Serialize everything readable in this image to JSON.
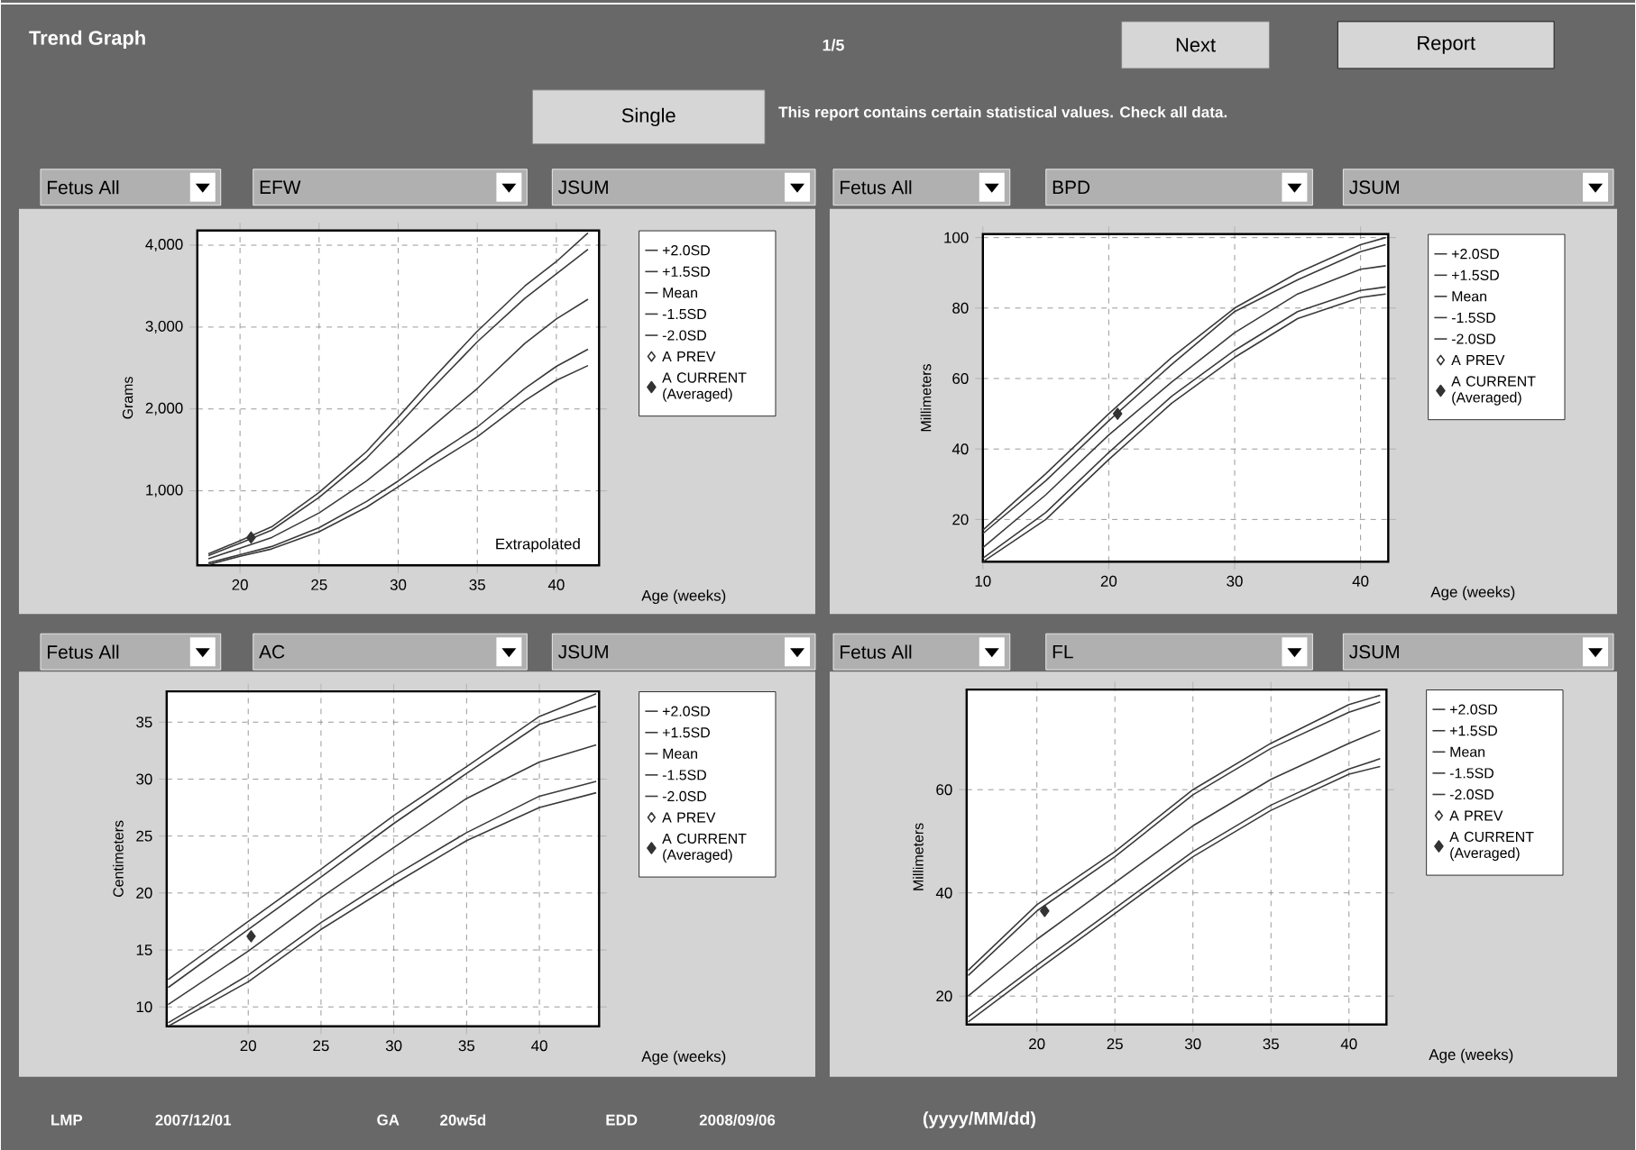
{
  "chart_data": [
    {
      "type": "other",
      "title": "Trend Graph",
      "annotations": [
        "1/5",
        "Next",
        "Report",
        "Single",
        "This report contains certain statistical values. Check all data.",
        "LMP",
        "2007/12/01",
        "GA",
        "20w5d",
        "EDD",
        "2008/09/06",
        "(yyyy/MM/dd)"
      ]
    },
    {
      "type": "line",
      "title": "EFW",
      "annotations": [
        "Fetus All",
        "JSUM",
        "Extrapolated"
      ],
      "xlabel": "Age (weeks)",
      "ylabel": "Grams",
      "x": [
        18,
        20,
        22,
        25,
        28,
        30,
        32,
        35,
        38,
        40,
        42
      ],
      "xlim": [
        17.3,
        42.7
      ],
      "ylim": [
        90,
        4180
      ],
      "xticks": [
        20,
        25,
        30,
        35,
        40
      ],
      "yticks": [
        {
          "value": 1000,
          "label": "1,000"
        },
        {
          "value": 2000,
          "label": "2,000"
        },
        {
          "value": 3000,
          "label": "3,000"
        },
        {
          "value": 4000,
          "label": "4,000"
        }
      ],
      "grid": true,
      "legend": "right",
      "marker": "none",
      "series": [
        {
          "name": "+2.0SD",
          "color": "#3a3a3a",
          "values": [
            230,
            390,
            560,
            980,
            1480,
            1900,
            2330,
            2950,
            3500,
            3800,
            4150
          ]
        },
        {
          "name": "+1.5SD",
          "color": "#3a3a3a",
          "values": [
            210,
            360,
            520,
            920,
            1400,
            1800,
            2220,
            2820,
            3350,
            3650,
            3950
          ]
        },
        {
          "name": "Mean",
          "color": "#3a3a3a",
          "values": [
            170,
            300,
            430,
            730,
            1120,
            1430,
            1760,
            2250,
            2800,
            3100,
            3340
          ]
        },
        {
          "name": "-1.5SD",
          "color": "#3a3a3a",
          "values": [
            120,
            220,
            320,
            550,
            870,
            1120,
            1400,
            1780,
            2250,
            2520,
            2730
          ]
        },
        {
          "name": "-2.0SD",
          "color": "#3a3a3a",
          "values": [
            100,
            200,
            290,
            500,
            800,
            1050,
            1300,
            1660,
            2100,
            2350,
            2530
          ]
        },
        {
          "name": "A PREV",
          "type": "scatter",
          "marker": "diamond",
          "color": "#333333",
          "values": [
            null,
            null,
            null,
            null,
            null,
            null,
            null,
            null,
            null,
            null,
            null
          ]
        },
        {
          "name": "A CURRENT (Averaged)",
          "type": "scatter",
          "marker": "diamond",
          "color": "#333333",
          "x": [
            20.7
          ],
          "values": [
            430
          ]
        }
      ]
    },
    {
      "type": "line",
      "title": "BPD",
      "annotations": [
        "Fetus All",
        "JSUM"
      ],
      "xlabel": "Age (weeks)",
      "ylabel": "Millimeters",
      "x": [
        10,
        15,
        20,
        25,
        30,
        35,
        40,
        42
      ],
      "xlim": [
        10,
        42.2
      ],
      "ylim": [
        8,
        101
      ],
      "xticks": [
        10,
        20,
        30,
        40
      ],
      "yticks": [
        20,
        40,
        60,
        80,
        100
      ],
      "grid": true,
      "legend": "right",
      "marker": "none",
      "series": [
        {
          "name": "+2.0SD",
          "color": "#3a3a3a",
          "values": [
            17,
            33,
            50,
            66,
            80,
            90,
            98,
            100
          ]
        },
        {
          "name": "+1.5SD",
          "color": "#3a3a3a",
          "values": [
            16,
            31,
            48,
            64,
            79,
            88,
            96,
            98
          ]
        },
        {
          "name": "Mean",
          "color": "#3a3a3a",
          "values": [
            12,
            27,
            44,
            59,
            73,
            84,
            91,
            92
          ]
        },
        {
          "name": "-1.5SD",
          "color": "#3a3a3a",
          "values": [
            9,
            22,
            39,
            55,
            68,
            79,
            85,
            86
          ]
        },
        {
          "name": "-2.0SD",
          "color": "#3a3a3a",
          "values": [
            8,
            20,
            37,
            53,
            66,
            77,
            83,
            84
          ]
        },
        {
          "name": "A PREV",
          "type": "scatter",
          "marker": "diamond",
          "color": "#333333",
          "values": [
            null,
            null,
            null,
            null,
            null,
            null,
            null,
            null
          ]
        },
        {
          "name": "A CURRENT (Averaged)",
          "type": "scatter",
          "marker": "diamond",
          "color": "#333333",
          "x": [
            20.7
          ],
          "values": [
            50
          ]
        }
      ]
    },
    {
      "type": "line",
      "title": "AC",
      "annotations": [
        "Fetus All",
        "JSUM"
      ],
      "xlabel": "Age (weeks)",
      "ylabel": "Centimeters",
      "x": [
        14.5,
        20,
        25,
        30,
        35,
        40,
        43.9
      ],
      "xlim": [
        14.4,
        44.1
      ],
      "ylim": [
        8.3,
        37.7
      ],
      "xticks": [
        20,
        25,
        30,
        35,
        40
      ],
      "yticks": [
        10,
        15,
        20,
        25,
        30,
        35
      ],
      "grid": true,
      "legend": "right",
      "marker": "none",
      "series": [
        {
          "name": "+2.0SD",
          "color": "#3a3a3a",
          "values": [
            12.4,
            17.5,
            22.1,
            26.8,
            31.1,
            35.5,
            37.5
          ]
        },
        {
          "name": "+1.5SD",
          "color": "#3a3a3a",
          "values": [
            11.7,
            16.8,
            21.4,
            26.1,
            30.5,
            34.8,
            36.4
          ]
        },
        {
          "name": "Mean",
          "color": "#3a3a3a",
          "values": [
            10.2,
            14.9,
            19.6,
            24.0,
            28.3,
            31.5,
            33.0
          ]
        },
        {
          "name": "-1.5SD",
          "color": "#3a3a3a",
          "values": [
            8.6,
            12.8,
            17.4,
            21.5,
            25.3,
            28.5,
            29.8
          ]
        },
        {
          "name": "-2.0SD",
          "color": "#3a3a3a",
          "values": [
            8.3,
            12.2,
            16.8,
            20.8,
            24.6,
            27.5,
            28.8
          ]
        },
        {
          "name": "A PREV",
          "type": "scatter",
          "marker": "diamond",
          "color": "#333333",
          "values": [
            null,
            null,
            null,
            null,
            null,
            null,
            null
          ]
        },
        {
          "name": "A CURRENT (Averaged)",
          "type": "scatter",
          "marker": "diamond",
          "color": "#333333",
          "x": [
            20.2
          ],
          "values": [
            16.2
          ]
        }
      ]
    },
    {
      "type": "line",
      "title": "FL",
      "annotations": [
        "Fetus All",
        "JSUM"
      ],
      "xlabel": "Age (weeks)",
      "ylabel": "Millimeters",
      "x": [
        15.6,
        20,
        25,
        30,
        35,
        40,
        42
      ],
      "xlim": [
        15.5,
        42.4
      ],
      "ylim": [
        14.5,
        79.4
      ],
      "xticks": [
        20,
        25,
        30,
        35,
        40
      ],
      "yticks": [
        20,
        40,
        60
      ],
      "grid": true,
      "legend": "right",
      "marker": "none",
      "series": [
        {
          "name": "+2.0SD",
          "color": "#3a3a3a",
          "values": [
            25,
            37.7,
            48,
            60,
            69,
            76.5,
            78.3
          ]
        },
        {
          "name": "+1.5SD",
          "color": "#3a3a3a",
          "values": [
            24,
            36.5,
            47,
            59,
            68,
            75,
            77
          ]
        },
        {
          "name": "Mean",
          "color": "#3a3a3a",
          "values": [
            20,
            31,
            42,
            53,
            62,
            69,
            71.5
          ]
        },
        {
          "name": "-1.5SD",
          "color": "#3a3a3a",
          "values": [
            16,
            26,
            37,
            48,
            57,
            64,
            66
          ]
        },
        {
          "name": "-2.0SD",
          "color": "#3a3a3a",
          "values": [
            15,
            25,
            36,
            47,
            56,
            63,
            64.5
          ]
        },
        {
          "name": "A PREV",
          "type": "scatter",
          "marker": "diamond",
          "color": "#333333",
          "values": [
            null,
            null,
            null,
            null,
            null,
            null,
            null
          ]
        },
        {
          "name": "A CURRENT (Averaged)",
          "type": "scatter",
          "marker": "diamond",
          "color": "#333333",
          "x": [
            20.5
          ],
          "values": [
            36.5
          ]
        }
      ]
    }
  ]
}
